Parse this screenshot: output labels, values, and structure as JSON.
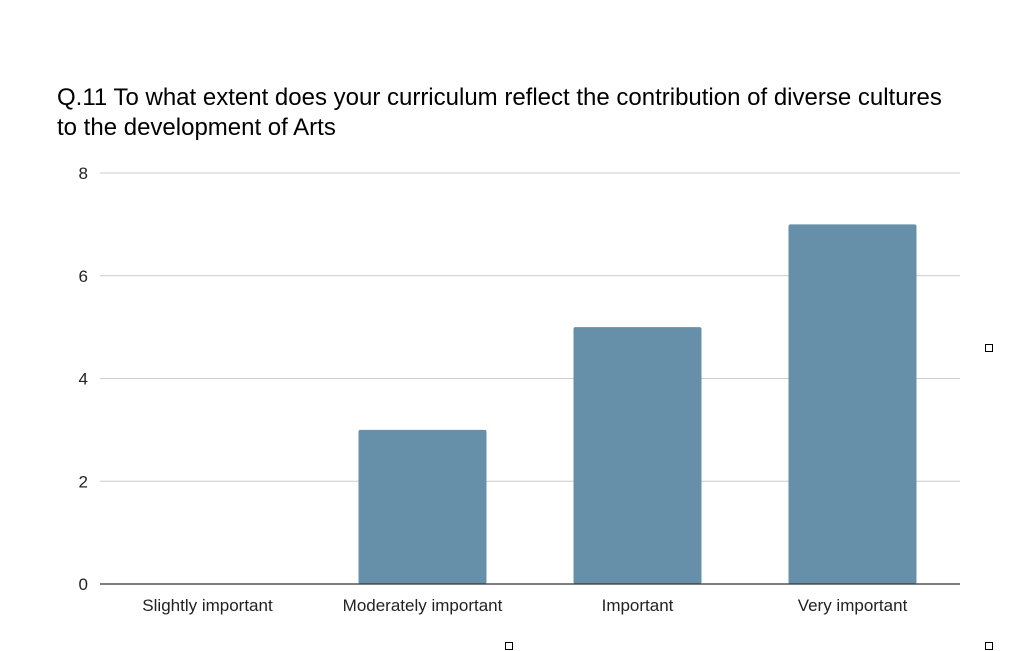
{
  "chart_data": {
    "type": "bar",
    "title": "Q.11 To what extent does your curriculum reflect the contribution of diverse cultures to the development of Arts",
    "categories": [
      "Slightly important",
      "Moderately important",
      "Important",
      "Very important"
    ],
    "values": [
      0,
      3,
      5,
      7
    ],
    "y_ticks": [
      "0",
      "2",
      "4",
      "6",
      "8"
    ],
    "ylim": [
      0,
      8
    ],
    "xlabel": "",
    "ylabel": "",
    "grid": true,
    "legend": "none",
    "bar_color": "#6690aa",
    "gridline_color": "#cccccc",
    "axis_color": "#333333"
  }
}
